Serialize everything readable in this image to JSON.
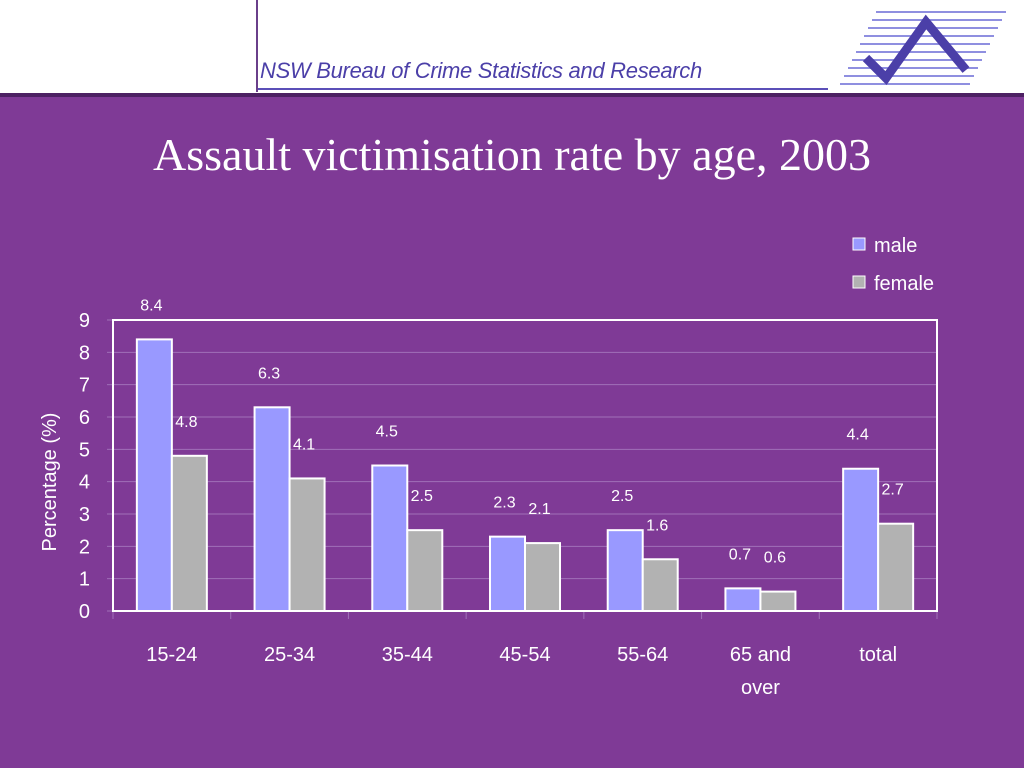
{
  "header": {
    "org_name": "NSW Bureau of Crime Statistics and Research"
  },
  "colors": {
    "male": "#9999ff",
    "female": "#b2b2b2",
    "background": "#7f3a96"
  },
  "chart_data": {
    "type": "bar",
    "title": "Assault victimisation rate by age, 2003",
    "xlabel": "",
    "ylabel": "Percentage (%)",
    "ylim": [
      0,
      9
    ],
    "yticks": [
      "0",
      "1",
      "2",
      "3",
      "4",
      "5",
      "6",
      "7",
      "8",
      "9"
    ],
    "categories": [
      [
        "15-24"
      ],
      [
        "25-34"
      ],
      [
        "35-44"
      ],
      [
        "45-54"
      ],
      [
        "55-64"
      ],
      [
        "65 and",
        "over"
      ],
      [
        "total"
      ]
    ],
    "series": [
      {
        "name": "male",
        "values": [
          8.4,
          6.3,
          4.5,
          2.3,
          2.5,
          0.7,
          4.4
        ]
      },
      {
        "name": "female",
        "values": [
          4.8,
          4.1,
          2.5,
          2.1,
          1.6,
          0.6,
          2.7
        ]
      }
    ],
    "legend": "top-right",
    "grid": true
  }
}
